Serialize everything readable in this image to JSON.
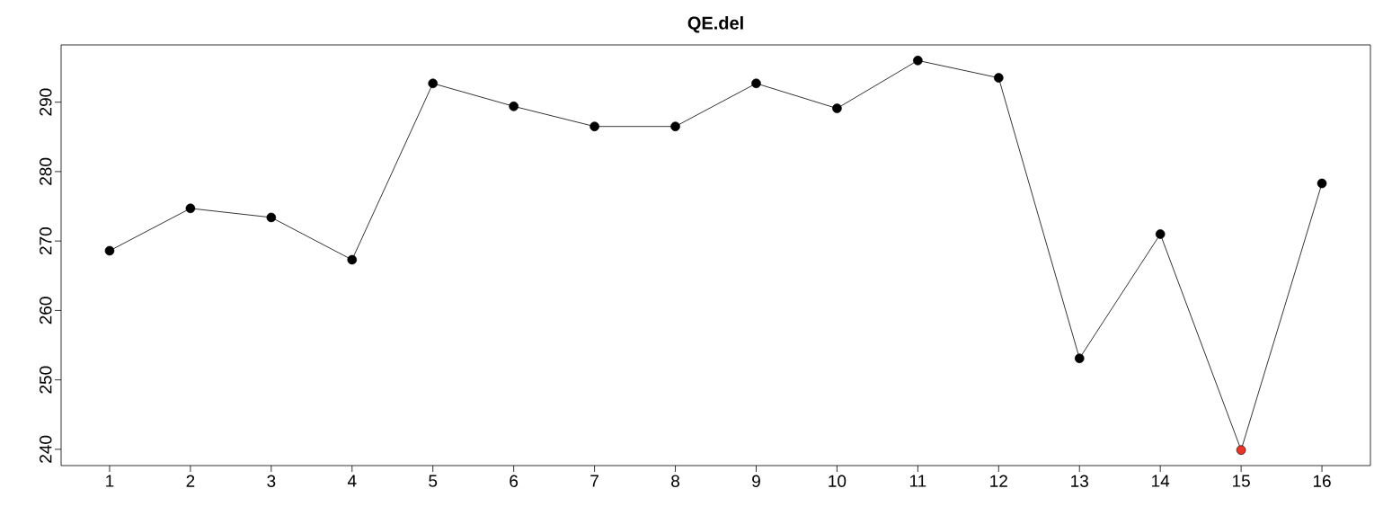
{
  "chart_data": {
    "type": "line",
    "title": "QE.del",
    "x": [
      1,
      2,
      3,
      4,
      5,
      6,
      7,
      8,
      9,
      10,
      11,
      12,
      13,
      14,
      15,
      16
    ],
    "values": [
      268.6,
      274.7,
      273.4,
      267.3,
      292.7,
      289.4,
      286.5,
      286.5,
      292.7,
      289.1,
      296.0,
      293.5,
      253.1,
      271.0,
      239.9,
      278.3
    ],
    "color": "#000000",
    "colors": [
      "#000000",
      "#000000",
      "#000000",
      "#000000",
      "#000000",
      "#000000",
      "#000000",
      "#000000",
      "#000000",
      "#000000",
      "#000000",
      "#000000",
      "#000000",
      "#000000",
      "#e8352a",
      "#000000"
    ],
    "marker": "circle",
    "xlim": [
      0.4,
      16.6
    ],
    "ylim": [
      237.66,
      298.24
    ],
    "xticks": [
      1,
      2,
      3,
      4,
      5,
      6,
      7,
      8,
      9,
      10,
      11,
      12,
      13,
      14,
      15,
      16
    ],
    "yticks": [
      240,
      250,
      260,
      270,
      280,
      290
    ]
  }
}
